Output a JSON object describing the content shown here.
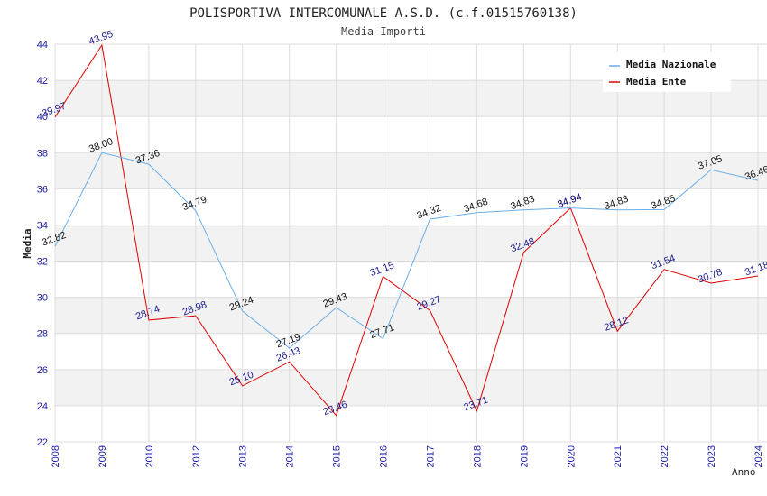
{
  "chart_data": {
    "type": "line",
    "title": "POLISPORTIVA INTERCOMUNALE A.S.D. (c.f.01515760138)",
    "subtitle": "Media Importi",
    "xlabel": "Anno",
    "ylabel": "Media",
    "ylim": [
      22,
      44
    ],
    "yticks": [
      22,
      24,
      26,
      28,
      30,
      32,
      34,
      36,
      38,
      40,
      42,
      44
    ],
    "categories": [
      "2008",
      "2009",
      "2010",
      "2012",
      "2013",
      "2014",
      "2015",
      "2016",
      "2017",
      "2018",
      "2019",
      "2020",
      "2021",
      "2022",
      "2023",
      "2024"
    ],
    "grid": true,
    "legend_position": "top-right",
    "series": [
      {
        "name": "Media Nazionale",
        "color": "#6aaee8",
        "values": [
          32.82,
          38.0,
          37.36,
          34.79,
          29.24,
          27.19,
          29.43,
          27.71,
          34.32,
          34.68,
          34.83,
          34.94,
          34.83,
          34.85,
          37.05,
          36.46
        ],
        "labels": [
          "32.82",
          "38.00",
          "37.36",
          "34.79",
          "29.24",
          "27.19",
          "29.43",
          "27.71",
          "34.32",
          "34.68",
          "34.83",
          "34.94",
          "34.83",
          "34.85",
          "37.05",
          "36.46"
        ]
      },
      {
        "name": "Media Ente",
        "color": "#dd0000",
        "values": [
          39.97,
          43.95,
          28.74,
          28.98,
          25.1,
          26.43,
          23.46,
          31.15,
          29.27,
          23.71,
          32.48,
          34.94,
          28.12,
          31.54,
          30.78,
          31.18
        ],
        "labels": [
          "39.97",
          "43.95",
          "28.74",
          "28.98",
          "25.10",
          "26.43",
          "23.46",
          "31.15",
          "29.27",
          "23.71",
          "32.48",
          "34.94",
          "28.12",
          "31.54",
          "30.78",
          "31.18"
        ]
      }
    ]
  }
}
